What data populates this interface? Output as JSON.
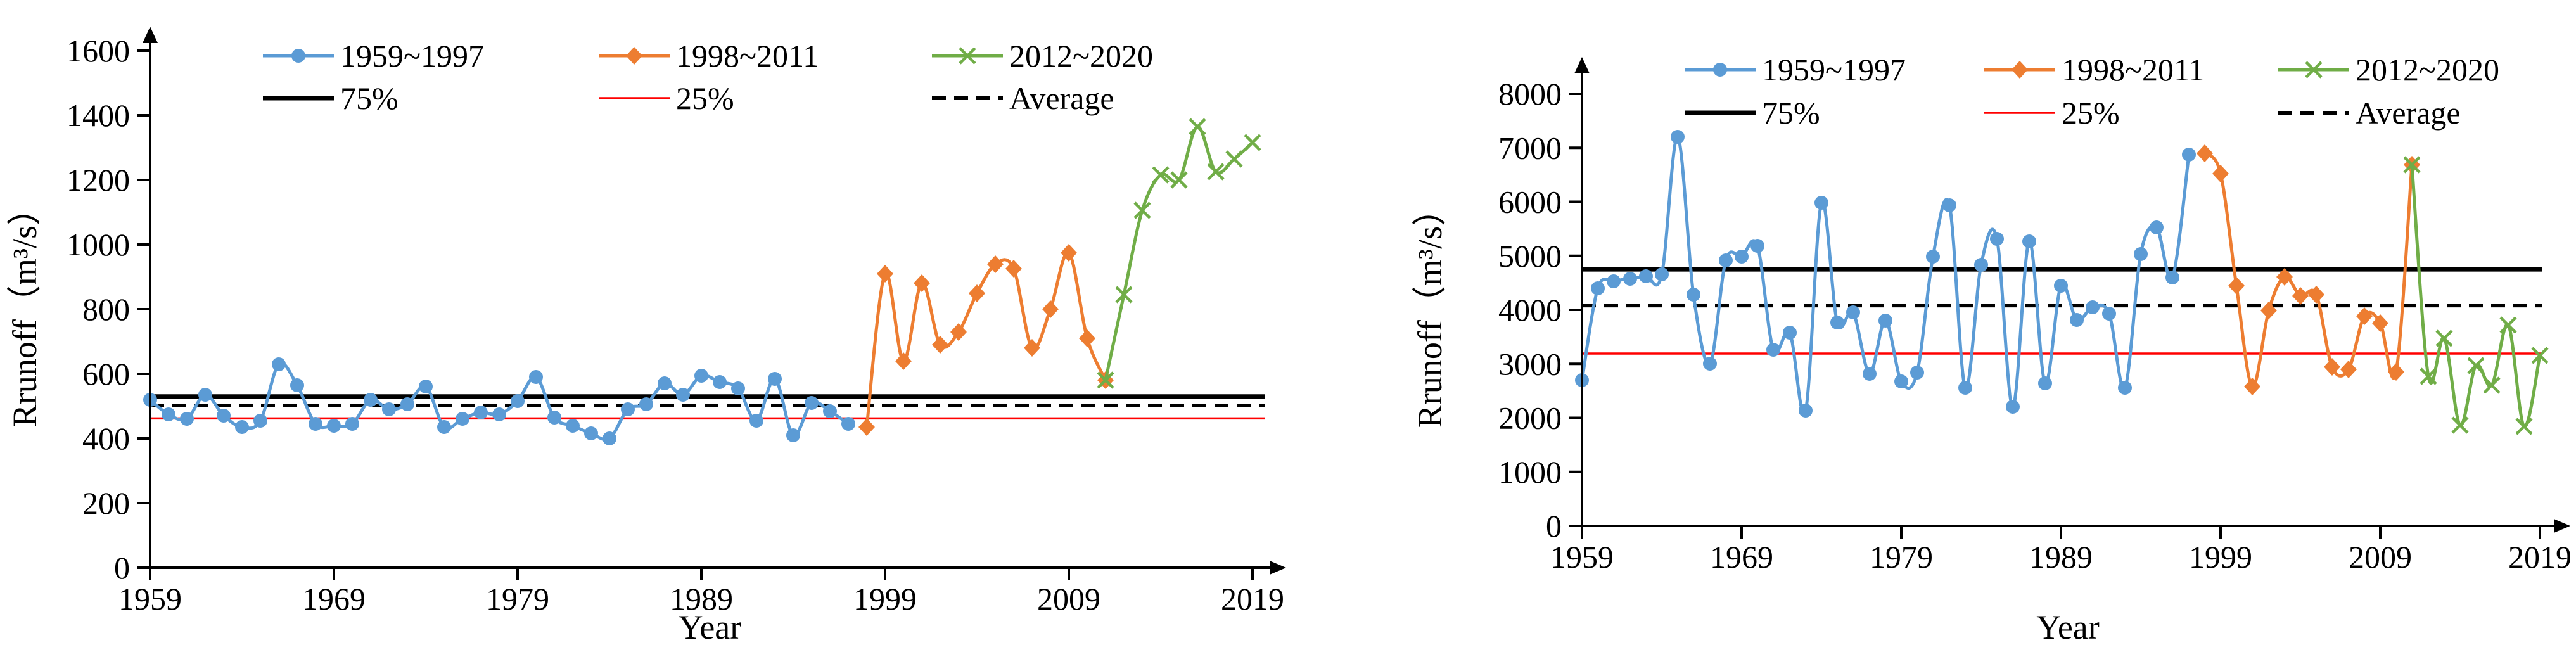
{
  "figure": {
    "background": "#ffffff",
    "xlabel": "Year",
    "ylabel": "Rrunoff（m³/s）"
  },
  "colors": {
    "period1": "#5B9BD5",
    "period2": "#ED7D31",
    "period3": "#70AD47",
    "p75_line": "#000000",
    "p25_line": "#FF0000",
    "average_line": "#000000",
    "axis": "#000000"
  },
  "chart_data": [
    {
      "type": "line",
      "title": "",
      "xlabel": "Year",
      "ylabel": "Rrunoff（m³/s）",
      "ylim": [
        0,
        1600
      ],
      "yticks": [
        0,
        200,
        400,
        600,
        800,
        1000,
        1200,
        1400,
        1600
      ],
      "xticks": [
        1959,
        1969,
        1979,
        1989,
        1999,
        2009,
        2019
      ],
      "grid": false,
      "legend_position": "top",
      "legend_rows": [
        [
          "1959~1997",
          "1998~2011",
          "2012~2020"
        ],
        [
          "75%",
          "25%",
          "Average"
        ]
      ],
      "series": [
        {
          "name": "1959~1997",
          "marker": "circle",
          "color": "#5B9BD5",
          "start_year": 1959,
          "values": [
            520,
            475,
            460,
            535,
            470,
            435,
            455,
            630,
            565,
            445,
            440,
            445,
            520,
            490,
            505,
            560,
            435,
            460,
            480,
            475,
            515,
            590,
            465,
            440,
            415,
            400,
            490,
            505,
            570,
            535,
            595,
            575,
            555,
            455,
            585,
            410,
            510,
            485,
            445
          ]
        },
        {
          "name": "1998~2011",
          "marker": "diamond",
          "color": "#ED7D31",
          "start_year": 1998,
          "values": [
            435,
            910,
            640,
            880,
            690,
            730,
            850,
            940,
            925,
            680,
            800,
            975,
            710,
            580
          ]
        },
        {
          "name": "2012~2020",
          "marker": "x",
          "color": "#70AD47",
          "start_year": 2011,
          "values": [
            580,
            845,
            1105,
            1215,
            1200,
            1365,
            1225,
            1265,
            1315
          ]
        }
      ],
      "ref_lines": [
        {
          "name": "75%",
          "value": 530,
          "style": "solid",
          "color": "#000000",
          "width": 7
        },
        {
          "name": "25%",
          "value": 462,
          "style": "solid",
          "color": "#FF0000",
          "width": 3.5
        },
        {
          "name": "Average",
          "value": 502,
          "style": "dashed",
          "color": "#000000",
          "width": 6
        }
      ]
    },
    {
      "type": "line",
      "title": "",
      "xlabel": "Year",
      "ylabel": "Rrunoff（m³/s）",
      "ylim": [
        0,
        8000
      ],
      "yticks": [
        0,
        1000,
        2000,
        3000,
        4000,
        5000,
        6000,
        7000,
        8000
      ],
      "xticks": [
        1959,
        1969,
        1979,
        1989,
        1999,
        2009,
        2019
      ],
      "grid": false,
      "legend_position": "top",
      "legend_rows": [
        [
          "1959~1997",
          "1998~2011",
          "2012~2020"
        ],
        [
          "75%",
          "25%",
          "Average"
        ]
      ],
      "series": [
        {
          "name": "1959~1997",
          "marker": "circle",
          "color": "#5B9BD5",
          "start_year": 1959,
          "values": [
            2700,
            4400,
            4530,
            4570,
            4620,
            4660,
            7200,
            4280,
            3000,
            4920,
            4980,
            5190,
            3260,
            3575,
            2130,
            5980,
            3770,
            3950,
            2820,
            3800,
            2680,
            2840,
            4980,
            5940,
            2560,
            4830,
            5310,
            2210,
            5270,
            2640,
            4450,
            3810,
            4050,
            3930,
            2555,
            5035,
            5520,
            4600,
            6870
          ]
        },
        {
          "name": "1998~2011",
          "marker": "diamond",
          "color": "#ED7D31",
          "start_year": 1998,
          "values": [
            6900,
            6520,
            4445,
            2580,
            3990,
            4610,
            4255,
            4280,
            2945,
            2900,
            3885,
            3750,
            2855,
            6690
          ]
        },
        {
          "name": "2012~2020",
          "marker": "x",
          "color": "#70AD47",
          "start_year": 2011,
          "values": [
            6690,
            2765,
            3475,
            1870,
            2965,
            2600,
            3715,
            1845,
            3155
          ]
        }
      ],
      "ref_lines": [
        {
          "name": "75%",
          "value": 4750,
          "style": "solid",
          "color": "#000000",
          "width": 7
        },
        {
          "name": "25%",
          "value": 3190,
          "style": "solid",
          "color": "#FF0000",
          "width": 3.5
        },
        {
          "name": "Average",
          "value": 4080,
          "style": "dashed",
          "color": "#000000",
          "width": 6
        }
      ]
    }
  ]
}
